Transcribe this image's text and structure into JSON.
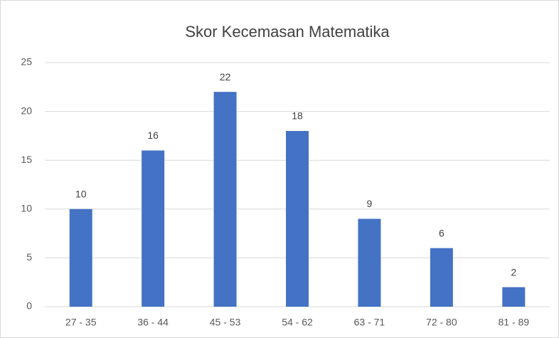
{
  "chart_data": {
    "type": "bar",
    "title": "Skor Kecemasan Matematika",
    "categories": [
      "27 - 35",
      "36 - 44",
      "45 - 53",
      "54 - 62",
      "63 - 71",
      "72 - 80",
      "81 - 89"
    ],
    "values": [
      10,
      16,
      22,
      18,
      9,
      6,
      2
    ],
    "color": "#4472c4",
    "ylim": [
      0,
      25
    ],
    "yticks": [
      0,
      5,
      10,
      15,
      20,
      25
    ],
    "grid": true,
    "data_labels": true
  }
}
